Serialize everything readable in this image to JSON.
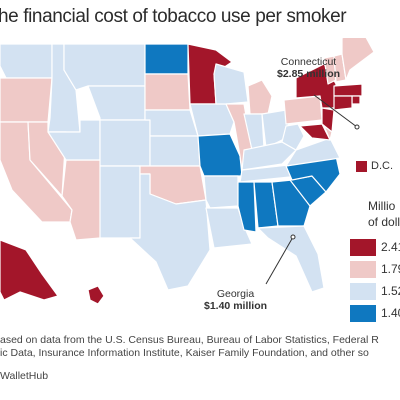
{
  "title": "he financial cost of tobacco use per smoker",
  "callouts": {
    "connecticut": {
      "name": "Connecticut",
      "value": "$2.85 million"
    },
    "georgia": {
      "name": "Georgia",
      "value": "$1.40 million"
    }
  },
  "dc_label": "D.C.",
  "legend": {
    "title_line1": "Millio",
    "title_line2": "of doll",
    "items": [
      {
        "label": "2.41",
        "color": "#a3162a"
      },
      {
        "label": "1.79",
        "color": "#efc9c7"
      },
      {
        "label": "1.52",
        "color": "#d3e2f2"
      },
      {
        "label": "1.40",
        "color": "#0f78c0"
      }
    ]
  },
  "footer": {
    "line1": "ased on data from the U.S. Census Bureau, Bureau of Labor Statistics, Federal R",
    "line2": "ic Data, Insurance Information Institute, Kaiser Family Foundation, and other so",
    "source": "WalletHub"
  },
  "map": {
    "colors": {
      "dark_red": "#a3162a",
      "pink": "#efc9c7",
      "light_blue": "#d3e2f2",
      "blue": "#0f78c0"
    },
    "states": {
      "WA": "light_blue",
      "OR": "pink",
      "CA": "pink",
      "ID": "light_blue",
      "NV": "pink",
      "AZ": "pink",
      "UT": "light_blue",
      "MT": "light_blue",
      "WY": "light_blue",
      "CO": "light_blue",
      "NM": "light_blue",
      "ND": "blue",
      "SD": "pink",
      "NE": "light_blue",
      "KS": "light_blue",
      "OK": "pink",
      "TX": "light_blue",
      "MN": "dark_red",
      "IA": "light_blue",
      "MO": "blue",
      "AR": "light_blue",
      "LA": "light_blue",
      "WI": "light_blue",
      "IL": "pink",
      "MI": "pink",
      "IN": "light_blue",
      "OH": "light_blue",
      "KY": "light_blue",
      "TN": "light_blue",
      "MS": "blue",
      "AL": "blue",
      "GA": "blue",
      "FL": "light_blue",
      "SC": "blue",
      "NC": "blue",
      "VA": "light_blue",
      "WV": "light_blue",
      "PA": "pink",
      "NY": "dark_red",
      "VT": "pink",
      "NH": "pink",
      "ME": "pink",
      "MA": "dark_red",
      "RI": "dark_red",
      "CT": "dark_red",
      "NJ": "dark_red",
      "DE": "pink",
      "MD": "dark_red",
      "AK": "dark_red",
      "HI": "dark_red",
      "DC": "dark_red"
    }
  }
}
